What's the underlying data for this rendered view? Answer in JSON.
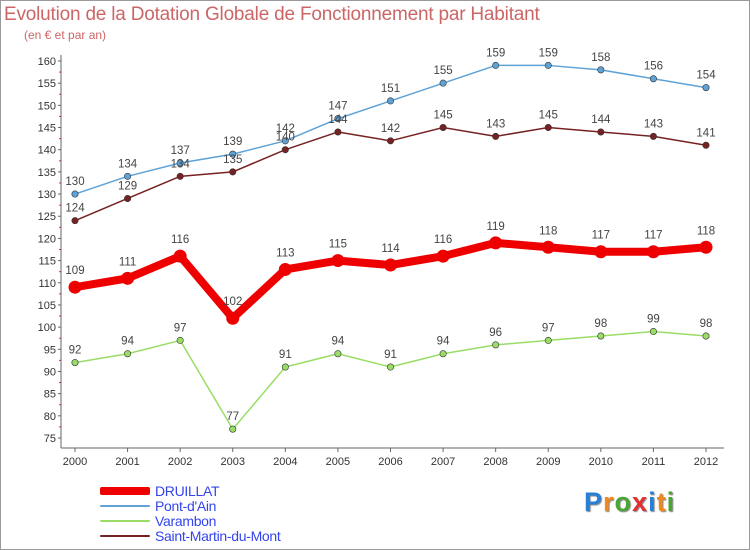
{
  "header": {
    "title": "Evolution de la Dotation Globale de Fonctionnement par Habitant",
    "subtitle": "(en € et par an)"
  },
  "chart_data": {
    "type": "line",
    "title": "Evolution de la Dotation Globale de Fonctionnement par Habitant",
    "ylabel": "(en € et par an)",
    "xlabel": "",
    "ylim": [
      75,
      160
    ],
    "yticks": [
      75,
      80,
      85,
      90,
      95,
      100,
      105,
      110,
      115,
      120,
      125,
      130,
      135,
      140,
      145,
      150,
      155,
      160
    ],
    "categories": [
      "2000",
      "2001",
      "2002",
      "2003",
      "2004",
      "2005",
      "2006",
      "2007",
      "2008",
      "2009",
      "2010",
      "2011",
      "2012"
    ],
    "series": [
      {
        "name": "DRUILLAT",
        "color": "#ee0000",
        "values": [
          109,
          111,
          116,
          102,
          113,
          115,
          114,
          116,
          119,
          118,
          117,
          117,
          118
        ]
      },
      {
        "name": "Pont-d'Ain",
        "color": "#5ea2d6",
        "values": [
          130,
          134,
          137,
          139,
          142,
          147,
          151,
          155,
          159,
          159,
          158,
          156,
          154
        ]
      },
      {
        "name": "Varambon",
        "color": "#99dd66",
        "values": [
          92,
          94,
          97,
          77,
          91,
          94,
          91,
          94,
          96,
          97,
          98,
          99,
          98
        ]
      },
      {
        "name": "Saint-Martin-du-Mont",
        "color": "#772222",
        "values": [
          124,
          129,
          134,
          135,
          140,
          144,
          142,
          145,
          143,
          145,
          144,
          143,
          141
        ]
      }
    ],
    "legend_position": "bottom-left",
    "grid": false
  },
  "logo": {
    "letters": [
      "P",
      "r",
      "o",
      "x",
      "i",
      "t",
      "i"
    ],
    "colors": [
      "#2a7fd4",
      "#f08a1c",
      "#4aa532",
      "#e03030",
      "#2a7fd4",
      "#f08a1c",
      "#4aa532"
    ]
  }
}
